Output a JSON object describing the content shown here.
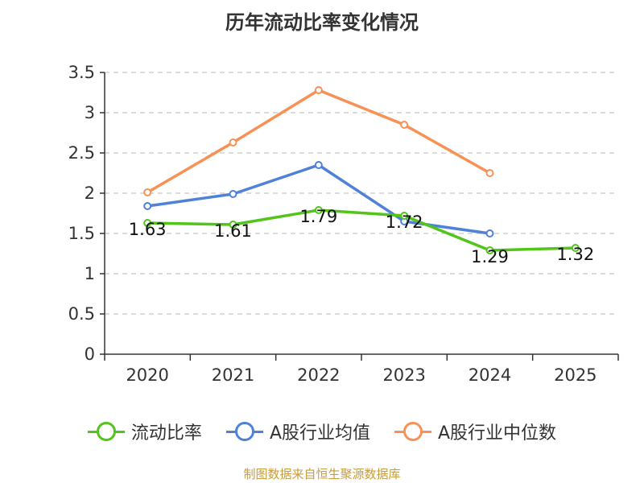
{
  "chart_data": {
    "type": "line",
    "title": "历年流动比率变化情况",
    "categories": [
      "2020",
      "2021",
      "2022",
      "2023",
      "2024",
      "2025"
    ],
    "ylim": [
      0,
      3.5
    ],
    "yticks": [
      "0",
      "0.5",
      "1",
      "1.5",
      "2",
      "2.5",
      "3",
      "3.5"
    ],
    "grid": true,
    "legend_position": "bottom",
    "series": [
      {
        "name": "流动比率",
        "color": "#52c41a",
        "values": [
          1.63,
          1.61,
          1.79,
          1.72,
          1.29,
          1.32
        ],
        "labels": [
          "1.63",
          "1.61",
          "1.79",
          "1.72",
          "1.29",
          "1.32"
        ]
      },
      {
        "name": "A股行业均值",
        "color": "#4f81d9",
        "values": [
          1.84,
          1.99,
          2.35,
          1.65,
          1.5,
          null
        ]
      },
      {
        "name": "A股行业中位数",
        "color": "#f79155",
        "values": [
          2.01,
          2.63,
          3.28,
          2.85,
          2.25,
          null
        ]
      }
    ]
  },
  "footer": {
    "source": "制图数据来自恒生聚源数据库"
  }
}
